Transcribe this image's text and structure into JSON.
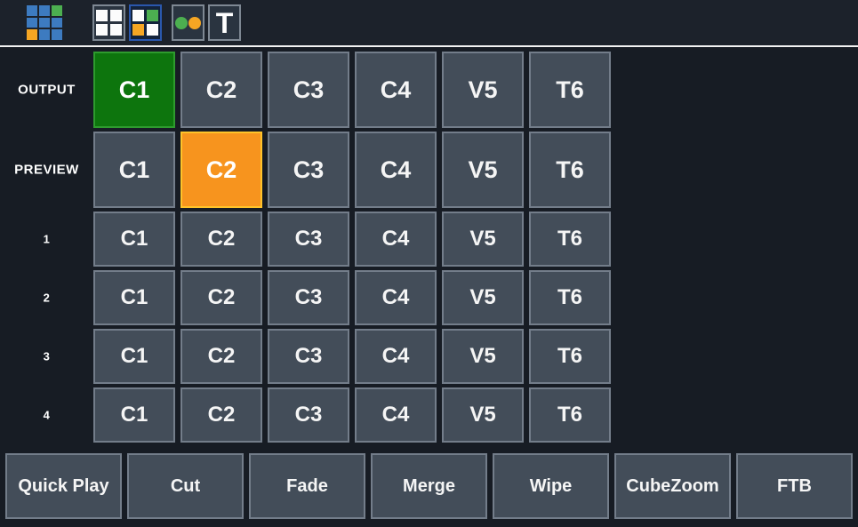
{
  "colors": {
    "background": "#171C24",
    "toolbar_background": "#1C222B",
    "separator": "#F2F2F2",
    "button_fill": "#434D59",
    "button_border": "#737D8A",
    "active_green": "#0D750D",
    "active_green_border": "#2E9B2E",
    "active_orange": "#F7941E",
    "active_orange_border": "#FFC32A",
    "selected_tool_border": "#2A57AC",
    "selected_tool_fill": "#13233B",
    "icon_white": "#FCFCFC",
    "icon_blue": "#3D7BC0",
    "icon_green": "#4CAF50",
    "icon_orange": "#F5A623"
  },
  "toolbar": {
    "app_icon": {
      "icon": "app-launcher-grid-icon",
      "cells": [
        "blue",
        "blue",
        "green",
        "blue",
        "blue",
        "blue",
        "orange",
        "blue",
        "blue"
      ]
    },
    "buttons": [
      {
        "id": "grid-view",
        "icon": "grid-2x2-white-icon",
        "type": "grid",
        "cells": [
          "white",
          "white",
          "white",
          "white"
        ],
        "selected": false
      },
      {
        "id": "mixer-view",
        "icon": "grid-2x2-colored-icon",
        "type": "grid",
        "cells": [
          "white",
          "green",
          "orange",
          "white"
        ],
        "selected": true
      },
      {
        "id": "dots-view",
        "icon": "two-dots-icon",
        "type": "dots",
        "cells": [
          "green",
          "orange"
        ],
        "selected": false
      },
      {
        "id": "text-view",
        "icon": "letter-t-icon",
        "type": "text",
        "label": "T",
        "selected": false
      }
    ]
  },
  "matrix": {
    "columns": [
      "C1",
      "C2",
      "C3",
      "C4",
      "V5",
      "T6"
    ],
    "rows": [
      {
        "label": "OUTPUT",
        "size": "large",
        "active_column": 0,
        "active_color": "green"
      },
      {
        "label": "PREVIEW",
        "size": "large",
        "active_column": 1,
        "active_color": "orange"
      },
      {
        "label": "1",
        "size": "small",
        "active_column": -1,
        "active_color": null
      },
      {
        "label": "2",
        "size": "small",
        "active_column": -1,
        "active_color": null
      },
      {
        "label": "3",
        "size": "small",
        "active_column": -1,
        "active_color": null
      },
      {
        "label": "4",
        "size": "small",
        "active_column": -1,
        "active_color": null
      }
    ]
  },
  "transition_bar": {
    "buttons": [
      "Quick Play",
      "Cut",
      "Fade",
      "Merge",
      "Wipe",
      "CubeZoom",
      "FTB"
    ]
  }
}
